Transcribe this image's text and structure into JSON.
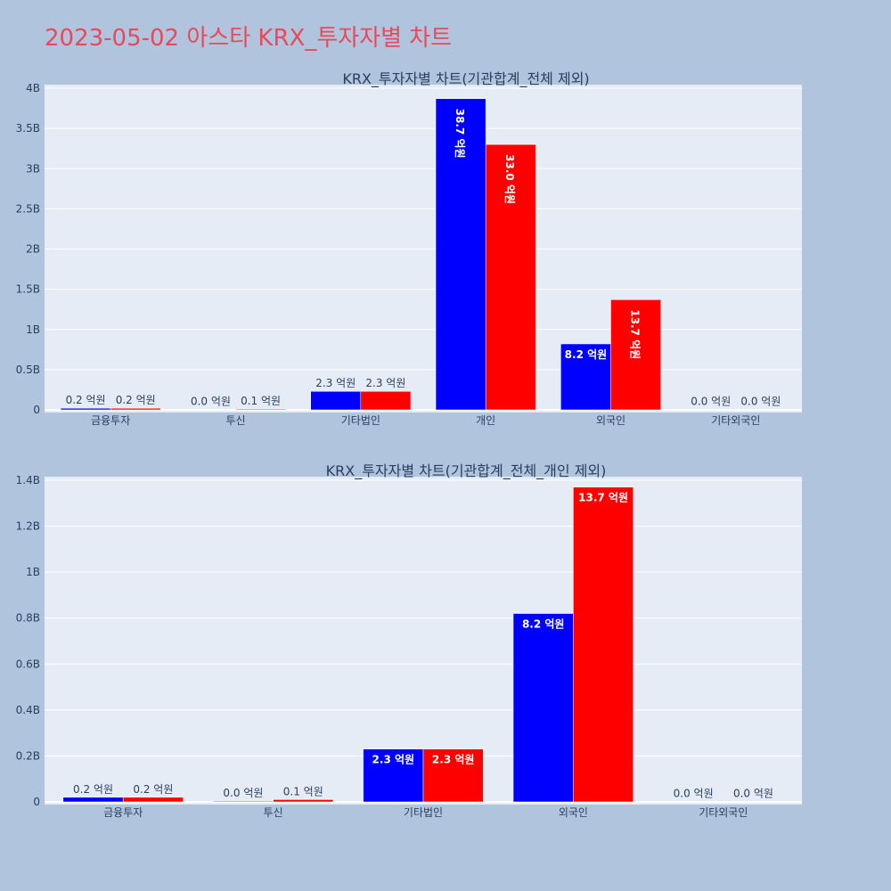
{
  "page": {
    "title": "2023-05-02 아스타 KRX_투자자별 차트"
  },
  "colors": {
    "background": "#b0c4de",
    "plot_bg": "#e5ecf6",
    "title": "#e8495b",
    "series_a": "#0000ff",
    "series_b": "#ff0000"
  },
  "chart_data": [
    {
      "type": "bar",
      "title": "KRX_투자자별 차트(기관합계_전체 제외)",
      "categories": [
        "금융투자",
        "투신",
        "기타법인",
        "개인",
        "외국인",
        "기타외국인"
      ],
      "yticks": [
        "0",
        "0.5B",
        "1B",
        "1.5B",
        "2B",
        "2.5B",
        "3B",
        "3.5B",
        "4B"
      ],
      "ylim": [
        0,
        4000000000
      ],
      "grid": true,
      "series": [
        {
          "color": "#0000ff",
          "values": [
            20000000,
            3000000,
            230000000,
            3870000000,
            820000000,
            1000000
          ],
          "labels": [
            "0.2 억원",
            "0.0 억원",
            "2.3 억원",
            "38.7 억원",
            "8.2 억원",
            "0.0 억원"
          ]
        },
        {
          "color": "#ff0000",
          "values": [
            20000000,
            10000000,
            230000000,
            3300000000,
            1370000000,
            1000000
          ],
          "labels": [
            "0.2 억원",
            "0.1 억원",
            "2.3 억원",
            "33.0 억원",
            "13.7 억원",
            "0.0 억원"
          ]
        }
      ]
    },
    {
      "type": "bar",
      "title": "KRX_투자자별 차트(기관합계_전체_개인 제외)",
      "categories": [
        "금융투자",
        "투신",
        "기타법인",
        "외국인",
        "기타외국인"
      ],
      "yticks": [
        "0",
        "0.2B",
        "0.4B",
        "0.6B",
        "0.8B",
        "1B",
        "1.2B",
        "1.4B"
      ],
      "ylim": [
        0,
        1400000000
      ],
      "grid": true,
      "series": [
        {
          "color": "#0000ff",
          "values": [
            20000000,
            3000000,
            230000000,
            820000000,
            1000000
          ],
          "labels": [
            "0.2 억원",
            "0.0 억원",
            "2.3 억원",
            "8.2 억원",
            "0.0 억원"
          ]
        },
        {
          "color": "#ff0000",
          "values": [
            20000000,
            10000000,
            230000000,
            1370000000,
            1000000
          ],
          "labels": [
            "0.2 억원",
            "0.1 억원",
            "2.3 억원",
            "13.7 억원",
            "0.0 억원"
          ]
        }
      ]
    }
  ]
}
